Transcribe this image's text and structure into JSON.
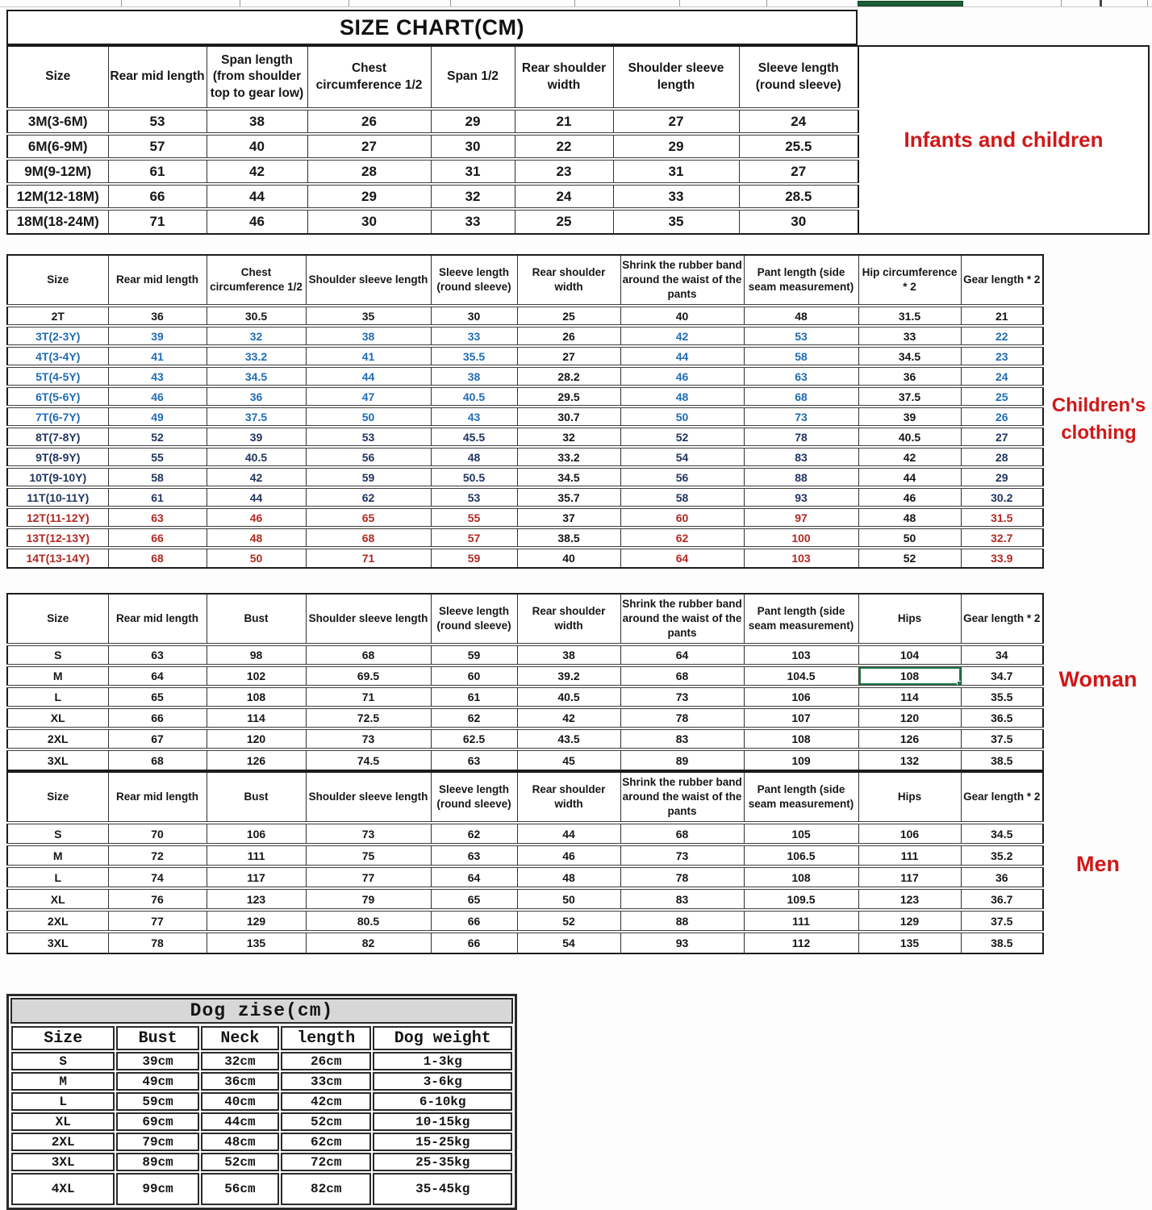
{
  "title": "SIZE CHART(CM)",
  "infants": {
    "label": "Infants and children",
    "headers": [
      "Size",
      "Rear mid length",
      "Span length (from shoulder top to gear low)",
      "Chest circumference 1/2",
      "Span 1/2",
      "Rear shoulder width",
      "Shoulder sleeve length",
      "Sleeve length (round sleeve)"
    ],
    "rows": [
      {
        "cells": [
          "3M(3-6M)",
          "53",
          "38",
          "26",
          "29",
          "21",
          "27",
          "24"
        ]
      },
      {
        "cells": [
          "6M(6-9M)",
          "57",
          "40",
          "27",
          "30",
          "22",
          "29",
          "25.5"
        ]
      },
      {
        "cells": [
          "9M(9-12M)",
          "61",
          "42",
          "28",
          "31",
          "23",
          "31",
          "27"
        ]
      },
      {
        "cells": [
          "12M(12-18M)",
          "66",
          "44",
          "29",
          "32",
          "24",
          "33",
          "28.5"
        ]
      },
      {
        "cells": [
          "18M(18-24M)",
          "71",
          "46",
          "30",
          "33",
          "25",
          "35",
          "30"
        ]
      }
    ]
  },
  "children": {
    "label": "Children's clothing",
    "headers": [
      "Size",
      "Rear mid length",
      "Chest circumference 1/2",
      "Shoulder sleeve length",
      "Sleeve length (round sleeve)",
      "Rear shoulder width",
      "Shrink the rubber band around the waist of the pants",
      "Pant length (side seam measurement)",
      "Hip circumference * 2",
      "Gear length * 2"
    ],
    "black_cols": [
      5,
      8
    ],
    "rows": [
      {
        "cells": [
          "2T",
          "36",
          "30.5",
          "35",
          "30",
          "25",
          "40",
          "48",
          "31.5",
          "21"
        ],
        "color": "black"
      },
      {
        "cells": [
          "3T(2-3Y)",
          "39",
          "32",
          "38",
          "33",
          "26",
          "42",
          "53",
          "33",
          "22"
        ],
        "color": "blue"
      },
      {
        "cells": [
          "4T(3-4Y)",
          "41",
          "33.2",
          "41",
          "35.5",
          "27",
          "44",
          "58",
          "34.5",
          "23"
        ],
        "color": "blue"
      },
      {
        "cells": [
          "5T(4-5Y)",
          "43",
          "34.5",
          "44",
          "38",
          "28.2",
          "46",
          "63",
          "36",
          "24"
        ],
        "color": "blue"
      },
      {
        "cells": [
          "6T(5-6Y)",
          "46",
          "36",
          "47",
          "40.5",
          "29.5",
          "48",
          "68",
          "37.5",
          "25"
        ],
        "color": "blue"
      },
      {
        "cells": [
          "7T(6-7Y)",
          "49",
          "37.5",
          "50",
          "43",
          "30.7",
          "50",
          "73",
          "39",
          "26"
        ],
        "color": "blue"
      },
      {
        "cells": [
          "8T(7-8Y)",
          "52",
          "39",
          "53",
          "45.5",
          "32",
          "52",
          "78",
          "40.5",
          "27"
        ],
        "color": "navy"
      },
      {
        "cells": [
          "9T(8-9Y)",
          "55",
          "40.5",
          "56",
          "48",
          "33.2",
          "54",
          "83",
          "42",
          "28"
        ],
        "color": "navy"
      },
      {
        "cells": [
          "10T(9-10Y)",
          "58",
          "42",
          "59",
          "50.5",
          "34.5",
          "56",
          "88",
          "44",
          "29"
        ],
        "color": "navy"
      },
      {
        "cells": [
          "11T(10-11Y)",
          "61",
          "44",
          "62",
          "53",
          "35.7",
          "58",
          "93",
          "46",
          "30.2"
        ],
        "color": "navy"
      },
      {
        "cells": [
          "12T(11-12Y)",
          "63",
          "46",
          "65",
          "55",
          "37",
          "60",
          "97",
          "48",
          "31.5"
        ],
        "color": "red"
      },
      {
        "cells": [
          "13T(12-13Y)",
          "66",
          "48",
          "68",
          "57",
          "38.5",
          "62",
          "100",
          "50",
          "32.7"
        ],
        "color": "red"
      },
      {
        "cells": [
          "14T(13-14Y)",
          "68",
          "50",
          "71",
          "59",
          "40",
          "64",
          "103",
          "52",
          "33.9"
        ],
        "color": "red"
      }
    ]
  },
  "woman": {
    "label": "Woman",
    "headers": [
      "Size",
      "Rear mid length",
      "Bust",
      "Shoulder sleeve length",
      "Sleeve length (round sleeve)",
      "Rear shoulder width",
      "Shrink the rubber band around the waist of the pants",
      "Pant length (side seam measurement)",
      "Hips",
      "Gear length * 2"
    ],
    "selected_cell": {
      "row": 1,
      "col": 8
    },
    "rows": [
      {
        "cells": [
          "S",
          "63",
          "98",
          "68",
          "59",
          "38",
          "64",
          "103",
          "104",
          "34"
        ]
      },
      {
        "cells": [
          "M",
          "64",
          "102",
          "69.5",
          "60",
          "39.2",
          "68",
          "104.5",
          "108",
          "34.7"
        ]
      },
      {
        "cells": [
          "L",
          "65",
          "108",
          "71",
          "61",
          "40.5",
          "73",
          "106",
          "114",
          "35.5"
        ]
      },
      {
        "cells": [
          "XL",
          "66",
          "114",
          "72.5",
          "62",
          "42",
          "78",
          "107",
          "120",
          "36.5"
        ]
      },
      {
        "cells": [
          "2XL",
          "67",
          "120",
          "73",
          "62.5",
          "43.5",
          "83",
          "108",
          "126",
          "37.5"
        ]
      },
      {
        "cells": [
          "3XL",
          "68",
          "126",
          "74.5",
          "63",
          "45",
          "89",
          "109",
          "132",
          "38.5"
        ]
      }
    ]
  },
  "men": {
    "label": "Men",
    "headers": [
      "Size",
      "Rear mid length",
      "Bust",
      "Shoulder sleeve length",
      "Sleeve length (round sleeve)",
      "Rear shoulder width",
      "Shrink the rubber band around the waist of the pants",
      "Pant length (side seam measurement)",
      "Hips",
      "Gear length * 2"
    ],
    "rows": [
      {
        "cells": [
          "S",
          "70",
          "106",
          "73",
          "62",
          "44",
          "68",
          "105",
          "106",
          "34.5"
        ]
      },
      {
        "cells": [
          "M",
          "72",
          "111",
          "75",
          "63",
          "46",
          "73",
          "106.5",
          "111",
          "35.2"
        ]
      },
      {
        "cells": [
          "L",
          "74",
          "117",
          "77",
          "64",
          "48",
          "78",
          "108",
          "117",
          "36"
        ]
      },
      {
        "cells": [
          "XL",
          "76",
          "123",
          "79",
          "65",
          "50",
          "83",
          "109.5",
          "123",
          "36.7"
        ]
      },
      {
        "cells": [
          "2XL",
          "77",
          "129",
          "80.5",
          "66",
          "52",
          "88",
          "111",
          "129",
          "37.5"
        ]
      },
      {
        "cells": [
          "3XL",
          "78",
          "135",
          "82",
          "66",
          "54",
          "93",
          "112",
          "135",
          "38.5"
        ]
      }
    ]
  },
  "dog": {
    "title": "Dog zise(cm)",
    "headers": [
      "Size",
      "Bust",
      "Neck",
      "length",
      "Dog weight"
    ],
    "rows": [
      {
        "cells": [
          "S",
          "39cm",
          "32cm",
          "26cm",
          "1-3kg"
        ]
      },
      {
        "cells": [
          "M",
          "49cm",
          "36cm",
          "33cm",
          "3-6kg"
        ]
      },
      {
        "cells": [
          "L",
          "59cm",
          "40cm",
          "42cm",
          "6-10kg"
        ]
      },
      {
        "cells": [
          "XL",
          "69cm",
          "44cm",
          "52cm",
          "10-15kg"
        ]
      },
      {
        "cells": [
          "2XL",
          "79cm",
          "48cm",
          "62cm",
          "15-25kg"
        ]
      },
      {
        "cells": [
          "3XL",
          "89cm",
          "52cm",
          "72cm",
          "25-35kg"
        ]
      },
      {
        "cells": [
          "4XL",
          "99cm",
          "56cm",
          "82cm",
          "35-45kg"
        ]
      }
    ]
  },
  "colors": {
    "label_red": "#d01818",
    "row_blue": "#1f6cb4",
    "row_navy": "#21365f",
    "row_red": "#b02a22",
    "selection_green": "#1e7a45",
    "dog_title_bg": "#d7d7d7"
  }
}
